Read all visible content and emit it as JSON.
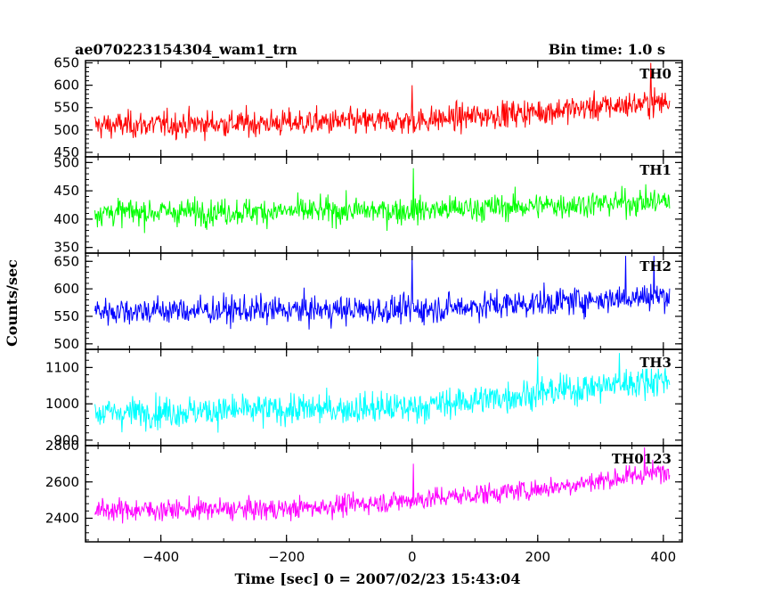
{
  "header": {
    "title": "ae070223154304_wam1_trn",
    "bin_time": "Bin time: 1.0 s"
  },
  "chart_data": {
    "type": "line",
    "xlabel": "Time [sec] 0 = 2007/02/23 15:43:04",
    "ylabel": "Counts/sec",
    "xlim": [
      -520,
      430
    ],
    "x_ticks": [
      -400,
      -200,
      0,
      200,
      400
    ],
    "x_tick_labels": [
      "−400",
      "−200",
      "0",
      "200",
      "400"
    ],
    "x_start": -505,
    "x_end": 410,
    "panels": [
      {
        "name": "TH0",
        "color": "#ff0000",
        "ylim": [
          440,
          655
        ],
        "y_ticks": [
          450,
          500,
          550,
          600,
          650
        ],
        "y_tick_labels": [
          "450",
          "500",
          "550",
          "600",
          "650"
        ],
        "trend": [
          [
            -505,
            510
          ],
          [
            0,
            520
          ],
          [
            410,
            563
          ]
        ],
        "noise": 28,
        "spikes": [
          [
            0,
            600
          ],
          [
            380,
            650
          ]
        ]
      },
      {
        "name": "TH1",
        "color": "#00ff00",
        "ylim": [
          340,
          510
        ],
        "y_ticks": [
          350,
          400,
          450,
          500
        ],
        "y_tick_labels": [
          "350",
          "400",
          "450",
          "500"
        ],
        "trend": [
          [
            -505,
            412
          ],
          [
            0,
            415
          ],
          [
            410,
            432
          ]
        ],
        "noise": 22,
        "spikes": [
          [
            2,
            490
          ]
        ]
      },
      {
        "name": "TH2",
        "color": "#0000ff",
        "ylim": [
          490,
          665
        ],
        "y_ticks": [
          500,
          550,
          600,
          650
        ],
        "y_tick_labels": [
          "500",
          "550",
          "600",
          "650"
        ],
        "trend": [
          [
            -505,
            560
          ],
          [
            0,
            562
          ],
          [
            410,
            588
          ]
        ],
        "noise": 24,
        "spikes": [
          [
            0,
            660
          ],
          [
            340,
            660
          ],
          [
            385,
            660
          ]
        ]
      },
      {
        "name": "TH3",
        "color": "#00ffff",
        "ylim": [
          885,
          1150
        ],
        "y_ticks": [
          900,
          1000,
          1100
        ],
        "y_tick_labels": [
          "900",
          "1000",
          "1100"
        ],
        "trend": [
          [
            -505,
            975
          ],
          [
            0,
            990
          ],
          [
            410,
            1070
          ]
        ],
        "noise": 40,
        "spikes": [
          [
            200,
            1130
          ],
          [
            330,
            1140
          ]
        ]
      },
      {
        "name": "TH0123",
        "color": "#ff00ff",
        "ylim": [
          2270,
          2800
        ],
        "y_ticks": [
          2400,
          2600,
          2800
        ],
        "y_tick_labels": [
          "2400",
          "2600",
          "2800"
        ],
        "trend": [
          [
            -505,
            2445
          ],
          [
            -200,
            2450
          ],
          [
            0,
            2500
          ],
          [
            200,
            2560
          ],
          [
            410,
            2660
          ]
        ],
        "noise": 55,
        "spikes": [
          [
            2,
            2700
          ],
          [
            370,
            2790
          ]
        ]
      }
    ]
  }
}
